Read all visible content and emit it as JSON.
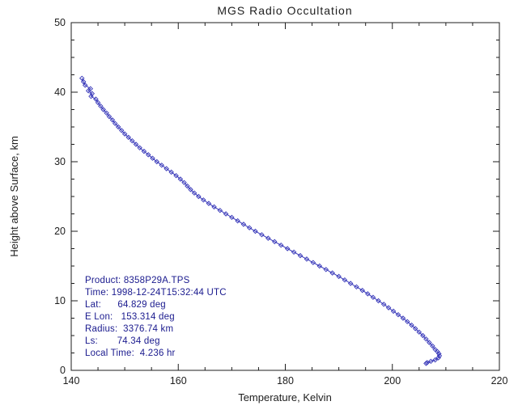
{
  "chart_data": {
    "type": "line",
    "title": "MGS Radio Occultation",
    "xlabel": "Temperature, Kelvin",
    "ylabel": "Height above Surface, km",
    "xlim": [
      140,
      220
    ],
    "ylim": [
      0,
      50
    ],
    "x_major_ticks": [
      140,
      160,
      180,
      200,
      220
    ],
    "y_major_ticks": [
      0,
      10,
      20,
      30,
      40,
      50
    ],
    "x_minor_step": 5,
    "y_minor_step": 2.5,
    "grid": false,
    "legend": "none",
    "marker": "open-diamond",
    "line_color": "#3434b8",
    "frame_color": "#1d1d1d",
    "series": [
      {
        "name": "temperature-profile",
        "x": [
          142.0,
          142.3,
          142.6,
          143.6,
          143.2,
          143.9,
          143.7,
          144.6,
          145.0,
          145.5,
          146.0,
          146.6,
          147.1,
          147.7,
          148.2,
          148.8,
          149.4,
          150.0,
          150.7,
          151.4,
          152.1,
          152.8,
          153.6,
          154.4,
          155.2,
          156.0,
          156.9,
          157.8,
          158.7,
          159.6,
          160.4,
          161.1,
          161.7,
          162.3,
          163.0,
          163.8,
          164.7,
          165.7,
          166.7,
          167.8,
          168.9,
          170.0,
          171.1,
          172.2,
          173.3,
          174.4,
          175.6,
          176.8,
          178.0,
          179.2,
          180.4,
          181.6,
          182.8,
          184.0,
          185.2,
          186.4,
          187.6,
          188.8,
          190.0,
          191.1,
          192.2,
          193.3,
          194.4,
          195.4,
          196.4,
          197.4,
          198.4,
          199.3,
          200.2,
          201.1,
          202.0,
          202.8,
          203.6,
          204.3,
          205.0,
          205.7,
          206.3,
          206.9,
          207.5,
          208.0,
          208.4,
          208.7,
          208.8,
          208.6,
          208.0,
          207.2,
          206.5,
          206.3
        ],
        "y": [
          42.0,
          41.5,
          41.0,
          40.5,
          40.2,
          39.8,
          39.4,
          39.0,
          38.5,
          38.0,
          37.5,
          37.0,
          36.5,
          36.0,
          35.5,
          35.0,
          34.5,
          34.0,
          33.5,
          33.0,
          32.5,
          32.0,
          31.5,
          31.0,
          30.5,
          30.0,
          29.5,
          29.0,
          28.5,
          28.0,
          27.5,
          27.0,
          26.5,
          26.0,
          25.5,
          25.0,
          24.5,
          24.0,
          23.5,
          23.0,
          22.5,
          22.0,
          21.5,
          21.0,
          20.5,
          20.0,
          19.5,
          19.0,
          18.5,
          18.0,
          17.5,
          17.0,
          16.5,
          16.0,
          15.5,
          15.0,
          14.5,
          14.0,
          13.5,
          13.0,
          12.5,
          12.0,
          11.5,
          11.0,
          10.5,
          10.0,
          9.5,
          9.0,
          8.5,
          8.0,
          7.5,
          7.0,
          6.5,
          6.0,
          5.5,
          5.0,
          4.5,
          4.0,
          3.5,
          3.0,
          2.7,
          2.4,
          2.1,
          1.8,
          1.5,
          1.3,
          1.1,
          1.0
        ]
      }
    ]
  },
  "annotation": {
    "text_color": "#1a1a8e",
    "lines": [
      "Product: 8358P29A.TPS",
      "Time: 1998-12-24T15:32:44 UTC",
      "Lat:      64.829 deg",
      "E Lon:   153.314 deg",
      "Radius:  3376.74 km",
      "Ls:       74.34 deg",
      "Local Time:  4.236 hr"
    ]
  }
}
